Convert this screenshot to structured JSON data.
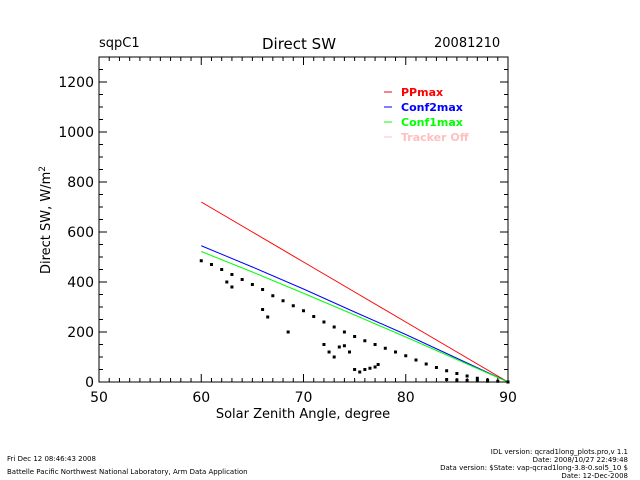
{
  "header": {
    "site": "sqpC1",
    "title": "Direct SW",
    "date": "20081210"
  },
  "footer": {
    "left": [
      "Fri Dec 12 08:46:43 2008",
      "Battelle Pacific Northwest National Laboratory, Arm Data Application"
    ],
    "right": [
      "IDL version: qcrad1long_plots.pro,v 1.1",
      "Date: 2008/10/27 22:49:48",
      "Data version: $State: vap-qcrad1long-3.8-0.sol5_10 $",
      "Date: 12-Dec-2008"
    ]
  },
  "chart_data": {
    "type": "scatter",
    "title": "Direct SW",
    "xlabel": "Solar Zenith Angle, degree",
    "ylabel": "Direct SW, W/m²",
    "xlim": [
      50,
      90
    ],
    "ylim": [
      0,
      1300
    ],
    "xticks": [
      "50",
      "60",
      "70",
      "80",
      "90"
    ],
    "yticks": [
      "0",
      "200",
      "400",
      "600",
      "800",
      "1000",
      "1200"
    ],
    "grid": false,
    "legend_position": "top-right",
    "legend": [
      {
        "name": "PPmax",
        "color": "#ff0000"
      },
      {
        "name": "Conf2max",
        "color": "#0000ff"
      },
      {
        "name": "Conf1max",
        "color": "#00ff00"
      },
      {
        "name": "Tracker Off",
        "color": "#ffbfbf"
      }
    ],
    "series": [
      {
        "name": "PPmax",
        "kind": "line",
        "color": "#ff0000",
        "x": [
          60,
          65,
          70,
          75,
          80,
          85,
          90
        ],
        "y": [
          720,
          600,
          480,
          360,
          240,
          120,
          0
        ]
      },
      {
        "name": "Conf2max",
        "kind": "line",
        "color": "#0000ff",
        "x": [
          60,
          65,
          70,
          75,
          80,
          85,
          90
        ],
        "y": [
          545,
          460,
          372,
          280,
          190,
          95,
          0
        ]
      },
      {
        "name": "Conf1max",
        "kind": "line",
        "color": "#00ff00",
        "x": [
          60,
          65,
          70,
          75,
          80,
          85,
          90
        ],
        "y": [
          522,
          440,
          355,
          268,
          180,
          90,
          0
        ]
      },
      {
        "name": "Observed",
        "kind": "points",
        "color": "#000000",
        "x": [
          60,
          61,
          62,
          63,
          64,
          65,
          66,
          67,
          68,
          69,
          70,
          71,
          72,
          73,
          74,
          75,
          76,
          77,
          78,
          79,
          80,
          81,
          82,
          83,
          84,
          85,
          86,
          87,
          88,
          89,
          90,
          62.5,
          63,
          66,
          66.5,
          68.5,
          72,
          72.5,
          73,
          73.5,
          74,
          74.5,
          75,
          75.5,
          76,
          76.5,
          77,
          77.3,
          84,
          85,
          86,
          87,
          88
        ],
        "y": [
          485,
          470,
          450,
          430,
          410,
          390,
          370,
          345,
          325,
          305,
          285,
          262,
          240,
          220,
          200,
          182,
          165,
          150,
          135,
          120,
          105,
          88,
          72,
          58,
          45,
          34,
          24,
          15,
          8,
          3,
          0,
          400,
          380,
          290,
          260,
          200,
          150,
          120,
          100,
          140,
          145,
          120,
          50,
          40,
          50,
          55,
          60,
          70,
          10,
          8,
          6,
          5,
          3
        ]
      }
    ]
  }
}
